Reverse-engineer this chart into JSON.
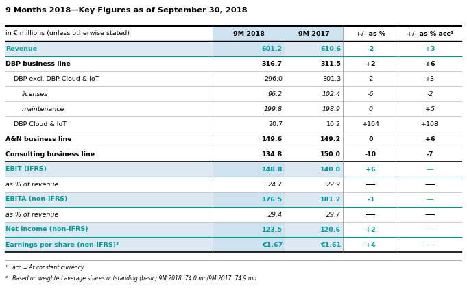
{
  "title": "9 Months 2018—Key Figures as of September 30, 2018",
  "col_headers": [
    "in € millions (unless otherwise stated)",
    "9M 2018",
    "9M 2017",
    "+/- as %",
    "+/- as % acc¹"
  ],
  "rows": [
    {
      "label": "Revenue",
      "vals": [
        "601.2",
        "610.6",
        "-2",
        "+3"
      ],
      "style": "cyan_bold",
      "indent": 0
    },
    {
      "label": "DBP business line",
      "vals": [
        "316.7",
        "311.5",
        "+2",
        "+6"
      ],
      "style": "bold",
      "indent": 0
    },
    {
      "label": "DBP excl. DBP Cloud & IoT",
      "vals": [
        "296.0",
        "301.3",
        "-2",
        "+3"
      ],
      "style": "normal",
      "indent": 1
    },
    {
      "label": "licenses",
      "vals": [
        "96.2",
        "102.4",
        "-6",
        "-2"
      ],
      "style": "italic",
      "indent": 2
    },
    {
      "label": "maintenance",
      "vals": [
        "199.8",
        "198.9",
        "0",
        "+5"
      ],
      "style": "italic",
      "indent": 2
    },
    {
      "label": "DBP Cloud & IoT",
      "vals": [
        "20.7",
        "10.2",
        "+104",
        "+108"
      ],
      "style": "normal",
      "indent": 1
    },
    {
      "label": "A&N business line",
      "vals": [
        "149.6",
        "149.2",
        "0",
        "+6"
      ],
      "style": "bold",
      "indent": 0
    },
    {
      "label": "Consulting business line",
      "vals": [
        "134.8",
        "150.0",
        "-10",
        "-7"
      ],
      "style": "bold",
      "indent": 0
    },
    {
      "label": "EBIT (IFRS)",
      "vals": [
        "148.8",
        "140.0",
        "+6",
        "—"
      ],
      "style": "cyan_bold",
      "indent": 0
    },
    {
      "label": "as % of revenue",
      "vals": [
        "24.7",
        "22.9",
        "—",
        "—"
      ],
      "style": "italic_gray",
      "indent": 0
    },
    {
      "label": "EBITA (non-IFRS)",
      "vals": [
        "176.5",
        "181.2",
        "-3",
        "—"
      ],
      "style": "cyan_bold",
      "indent": 0
    },
    {
      "label": "as % of revenue",
      "vals": [
        "29.4",
        "29.7",
        "—",
        "—"
      ],
      "style": "italic_gray",
      "indent": 0
    },
    {
      "label": "Net income (non-IFRS)",
      "vals": [
        "123.5",
        "120.6",
        "+2",
        "—"
      ],
      "style": "cyan_bold",
      "indent": 0
    },
    {
      "label": "Earnings per share (non-IFRS)²",
      "vals": [
        "€1.67",
        "€1.61",
        "+4",
        "—"
      ],
      "style": "cyan_bold",
      "indent": 0
    }
  ],
  "footnotes": [
    "¹   acc = At constant currency",
    "²   Based on weighted average shares outstanding (basic) 9M 2018: 74.0 mn/9M 2017: 74.9 mn"
  ],
  "cyan": "#009999",
  "col1_bg": "#cfe2f0",
  "col2_bg": "#dce9f2",
  "cyan_row_col12_bg": "#cfe2f0",
  "cyan_row_label_bg": "#dce9f2",
  "header_col12_bg": "#cfe2f0",
  "white": "#ffffff",
  "light_gray_bg": "#f0f0f0"
}
